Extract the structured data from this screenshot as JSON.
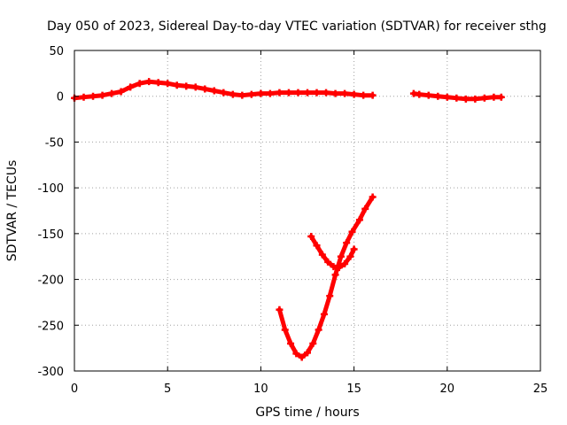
{
  "chart_data": {
    "type": "scatter",
    "title": "Day 050 of 2023, Sidereal Day-to-day VTEC variation (SDTVAR) for receiver sthg",
    "xlabel": "GPS time / hours",
    "ylabel": "SDTVAR / TECUs",
    "xlim": [
      0,
      25
    ],
    "ylim": [
      -300,
      50
    ],
    "xticks": [
      0,
      5,
      10,
      15,
      20,
      25
    ],
    "yticks": [
      -300,
      -250,
      -200,
      -150,
      -100,
      -50,
      0,
      50
    ],
    "grid": true,
    "color": "#ff0000",
    "series": [
      {
        "name": "main-track-early",
        "points": [
          [
            0.0,
            -2
          ],
          [
            0.5,
            -1
          ],
          [
            1.0,
            0
          ],
          [
            1.5,
            1
          ],
          [
            2.0,
            3
          ],
          [
            2.5,
            5
          ],
          [
            3.0,
            10
          ],
          [
            3.5,
            14
          ],
          [
            4.0,
            16
          ],
          [
            4.5,
            15
          ],
          [
            5.0,
            14
          ],
          [
            5.5,
            12
          ],
          [
            6.0,
            11
          ],
          [
            6.5,
            10
          ],
          [
            7.0,
            8
          ],
          [
            7.5,
            6
          ],
          [
            8.0,
            4
          ],
          [
            8.5,
            2
          ],
          [
            9.0,
            1
          ],
          [
            9.5,
            2
          ],
          [
            10.0,
            3
          ],
          [
            10.5,
            3
          ],
          [
            11.0,
            4
          ],
          [
            11.5,
            4
          ],
          [
            12.0,
            4
          ],
          [
            12.5,
            4
          ],
          [
            13.0,
            4
          ],
          [
            13.5,
            4
          ],
          [
            14.0,
            3
          ],
          [
            14.5,
            3
          ],
          [
            15.0,
            2
          ],
          [
            15.5,
            1
          ],
          [
            16.0,
            1
          ]
        ]
      },
      {
        "name": "main-track-late",
        "points": [
          [
            18.2,
            3
          ],
          [
            18.5,
            2
          ],
          [
            19.0,
            1
          ],
          [
            19.5,
            0
          ],
          [
            20.0,
            -1
          ],
          [
            20.5,
            -2
          ],
          [
            21.0,
            -3
          ],
          [
            21.5,
            -3
          ],
          [
            22.0,
            -2
          ],
          [
            22.5,
            -1
          ],
          [
            22.9,
            -1
          ]
        ]
      },
      {
        "name": "descending-arc",
        "points": [
          [
            11.0,
            -233
          ],
          [
            11.3,
            -255
          ],
          [
            11.6,
            -270
          ],
          [
            11.9,
            -281
          ],
          [
            12.2,
            -285
          ],
          [
            12.5,
            -280
          ],
          [
            12.8,
            -270
          ],
          [
            13.1,
            -255
          ],
          [
            13.4,
            -238
          ],
          [
            13.7,
            -218
          ],
          [
            14.0,
            -195
          ],
          [
            14.3,
            -175
          ],
          [
            14.6,
            -160
          ],
          [
            14.9,
            -148
          ],
          [
            15.3,
            -135
          ],
          [
            15.6,
            -123
          ],
          [
            16.0,
            -110
          ]
        ]
      },
      {
        "name": "upper-arc",
        "points": [
          [
            12.7,
            -153
          ],
          [
            13.0,
            -163
          ],
          [
            13.3,
            -173
          ],
          [
            13.6,
            -181
          ],
          [
            13.9,
            -186
          ],
          [
            14.2,
            -187
          ],
          [
            14.5,
            -183
          ],
          [
            14.8,
            -175
          ],
          [
            15.0,
            -167
          ]
        ]
      }
    ]
  }
}
